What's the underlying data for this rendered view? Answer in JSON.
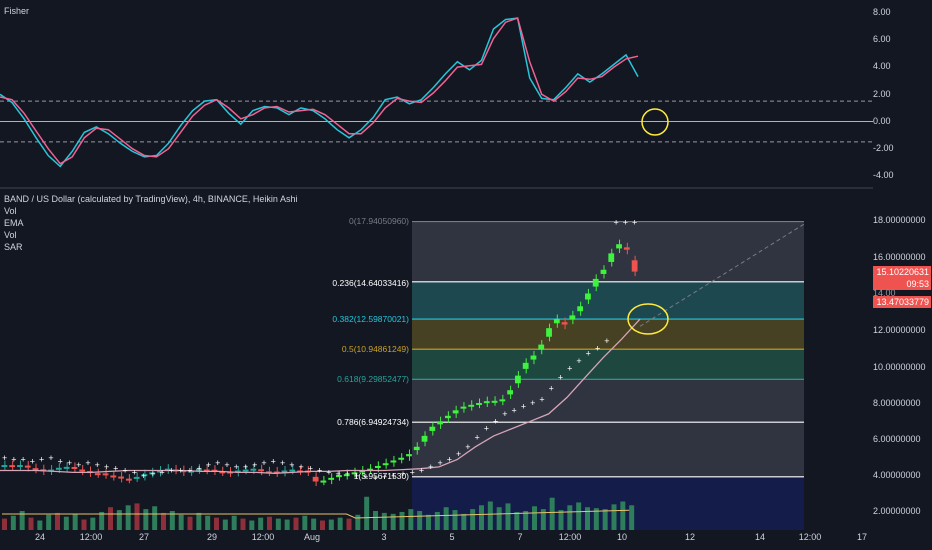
{
  "fisher_pane": {
    "title": "Fisher",
    "y_ticks": [
      "8.00",
      "6.00",
      "4.00",
      "2.00",
      "0.00",
      "-2.00",
      "-4.00"
    ]
  },
  "main_pane": {
    "title": "BAND / US Dollar (calculated by TradingView), 4h, BINANCE, Heikin Ashi",
    "indicators": [
      "Vol",
      "EMA",
      "Vol",
      "SAR"
    ],
    "y_ticks": [
      "18.00000000",
      "16.00000000",
      "14.00000000",
      "12.00000000",
      "10.00000000",
      "8.00000000",
      "6.00000000",
      "4.00000000",
      "2.00000000"
    ],
    "price_tags": {
      "last_price": "15.10220631",
      "countdown": "09:53",
      "prev_price": "14.00",
      "ema_value": "13.47033779"
    },
    "fib_levels": [
      {
        "label": "0(17.94050960)",
        "value": 17.9405096,
        "color": "#787b86"
      },
      {
        "label": "0.236(14.64033416)",
        "value": 14.64033416,
        "color": "#ffffff"
      },
      {
        "label": "0.382(12.59870021)",
        "value": 12.59870021,
        "color": "#26c6da"
      },
      {
        "label": "0.5(10.94861249)",
        "value": 10.94861249,
        "color": "#c9a227"
      },
      {
        "label": "0.618(9.29852477)",
        "value": 9.29852477,
        "color": "#26a69a"
      },
      {
        "label": "0.786(6.94924734)",
        "value": 6.94924734,
        "color": "#ffffff"
      },
      {
        "label": "1(3.95671530)",
        "value": 3.9567153,
        "color": "#ffffff"
      }
    ]
  },
  "x_axis": {
    "ticks": [
      "24",
      "12:00",
      "27",
      "29",
      "12:00",
      "Aug",
      "3",
      "5",
      "7",
      "12:00",
      "10",
      "12",
      "14",
      "12:00",
      "17"
    ]
  },
  "colors": {
    "background": "#131722",
    "up": "#26a69a",
    "down": "#ef5350",
    "bright_up": "#3ff23f",
    "fisher_main": "#26c6da",
    "fisher_trigger": "#f06292",
    "ema": "#d7a4b8",
    "volume_ma": "#e6c36a",
    "annotation": "#ffeb3b",
    "fib_box": "#363a45",
    "volume_box": "#141c4a"
  },
  "chart_data": [
    {
      "type": "line",
      "title": "Fisher",
      "ylim": [
        -4.5,
        8.5
      ],
      "levels": [
        1.5,
        0,
        -1.5
      ],
      "series": [
        {
          "values": [
            2.0,
            1.4,
            0.2,
            -1.2,
            -2.5,
            -3.3,
            -2.2,
            -0.8,
            -0.4,
            -0.9,
            -1.6,
            -2.2,
            -2.6,
            -2.5,
            -1.6,
            -0.3,
            0.8,
            1.5,
            1.6,
            0.6,
            -0.2,
            0.8,
            1.1,
            1.0,
            0.5,
            1.0,
            0.8,
            0.2,
            -0.6,
            -1.2,
            -0.6,
            0.3,
            1.6,
            1.8,
            1.3,
            1.6,
            2.5,
            3.5,
            4.4,
            3.8,
            4.5,
            6.8,
            7.5,
            7.6,
            3.2,
            1.7,
            1.6,
            2.5,
            3.5,
            2.9,
            3.5,
            4.2,
            4.9,
            3.3
          ]
        },
        {
          "values": [
            1.8,
            1.6,
            0.6,
            -0.7,
            -2.0,
            -3.1,
            -2.6,
            -1.2,
            -0.5,
            -0.6,
            -1.3,
            -2.0,
            -2.5,
            -2.6,
            -2.0,
            -0.8,
            0.4,
            1.2,
            1.6,
            1.0,
            0.2,
            0.5,
            1.0,
            1.1,
            0.7,
            0.8,
            0.9,
            0.5,
            -0.2,
            -0.9,
            -0.9,
            -0.1,
            1.0,
            1.7,
            1.5,
            1.4,
            2.1,
            3.0,
            4.0,
            4.1,
            4.2,
            6.1,
            7.3,
            7.6,
            4.4,
            2.0,
            1.5,
            2.2,
            3.2,
            3.1,
            3.3,
            4.0,
            4.6,
            4.8
          ]
        }
      ]
    },
    {
      "type": "candlestick",
      "title": "BAND / US Dollar (calculated by TradingView), 4h, BINANCE, Heikin Ashi",
      "ylim": [
        1.5,
        18.5
      ],
      "series": [
        {
          "name": "Heikin Ashi",
          "close": [
            4.6,
            4.55,
            4.6,
            4.5,
            4.4,
            4.3,
            4.35,
            4.45,
            4.5,
            4.45,
            4.3,
            4.2,
            4.15,
            4.1,
            4.0,
            3.9,
            3.85,
            3.95,
            4.1,
            4.2,
            4.3,
            4.4,
            4.35,
            4.25,
            4.3,
            4.4,
            4.35,
            4.3,
            4.25,
            4.2,
            4.3,
            4.35,
            4.4,
            4.3,
            4.25,
            4.2,
            4.3,
            4.35,
            4.3,
            4.25,
            3.7,
            3.75,
            3.9,
            4.05,
            4.1,
            4.2,
            4.3,
            4.4,
            4.55,
            4.7,
            4.85,
            5.0,
            5.2,
            5.6,
            6.2,
            6.7,
            7.0,
            7.3,
            7.6,
            7.8,
            7.9,
            8.0,
            8.1,
            8.1,
            8.2,
            8.7,
            9.5,
            10.2,
            10.6,
            11.2,
            12.1,
            12.6,
            12.3,
            12.8,
            13.3,
            14.0,
            14.8,
            15.3,
            16.2,
            16.7,
            16.4,
            15.2
          ]
        }
      ],
      "ema_values": [
        4.3,
        4.3,
        4.3,
        4.25,
        4.2,
        4.2,
        4.25,
        4.3,
        4.3,
        4.3,
        4.3,
        4.25,
        4.25,
        4.2,
        4.2,
        4.15,
        4.2,
        4.25,
        4.25,
        4.3,
        4.3,
        4.3,
        4.35,
        4.4,
        4.5,
        4.9,
        5.6,
        6.2,
        6.6,
        7.0,
        7.4,
        8.3,
        9.4,
        10.5,
        11.5,
        12.6
      ],
      "sar_values": [
        5.0,
        4.9,
        4.9,
        4.8,
        4.9,
        5.0,
        4.8,
        4.7,
        4.6,
        4.7,
        4.6,
        4.5,
        4.4,
        4.3,
        4.2,
        4.0,
        4.1,
        4.2,
        4.3,
        4.3,
        4.3,
        4.4,
        4.6,
        4.7,
        4.6,
        4.5,
        4.5,
        4.6,
        4.7,
        4.8,
        4.7,
        4.6,
        4.5,
        4.4,
        4.3,
        4.2,
        4.1,
        4.1,
        4.0,
        3.95,
        3.9,
        3.95,
        4.0,
        4.1,
        4.2,
        4.3,
        4.5,
        4.7,
        4.9,
        5.2,
        5.6,
        6.1,
        6.6,
        7.0,
        7.4,
        7.6,
        7.8,
        8.0,
        8.2,
        8.8,
        9.4,
        9.9,
        10.3,
        10.7,
        11.0,
        11.4,
        17.9,
        17.9,
        17.9
      ],
      "volume_values": [
        1.2,
        1.5,
        2.0,
        1.3,
        1.0,
        1.6,
        1.8,
        1.4,
        1.7,
        1.1,
        1.3,
        1.9,
        2.4,
        2.1,
        2.6,
        2.8,
        2.2,
        2.5,
        1.8,
        2.0,
        1.6,
        1.4,
        1.8,
        1.5,
        1.3,
        1.1,
        1.5,
        1.2,
        1.0,
        1.3,
        1.4,
        1.2,
        1.1,
        1.3,
        1.5,
        1.2,
        1.0,
        1.1,
        1.3,
        1.2,
        1.6,
        3.5,
        2.0,
        1.8,
        1.7,
        1.9,
        2.2,
        2.0,
        1.6,
        1.9,
        2.4,
        2.1,
        1.7,
        2.2,
        2.6,
        3.0,
        2.4,
        2.8,
        1.9,
        2.0,
        2.5,
        2.2,
        3.4,
        2.1,
        2.6,
        2.9,
        2.4,
        2.3,
        2.2,
        2.7,
        3.0,
        2.6
      ]
    }
  ]
}
